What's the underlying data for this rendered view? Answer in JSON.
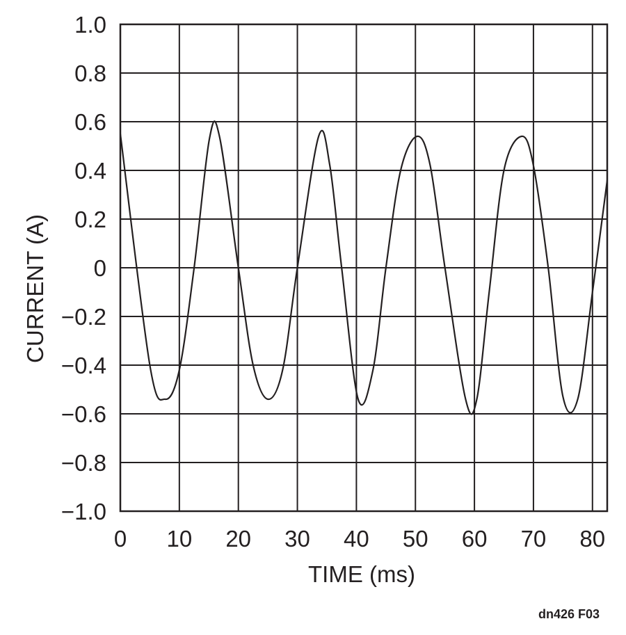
{
  "chart_data": {
    "type": "line",
    "title": "",
    "xlabel": "TIME (ms)",
    "ylabel": "CURRENT (A)",
    "xlim": [
      0,
      82.5
    ],
    "ylim": [
      -1.0,
      1.0
    ],
    "x_ticks": [
      0,
      10,
      20,
      30,
      40,
      50,
      60,
      70,
      80
    ],
    "x_tick_labels": [
      "0",
      "10",
      "20",
      "30",
      "40",
      "50",
      "60",
      "70",
      "80"
    ],
    "y_ticks": [
      1.0,
      0.8,
      0.6,
      0.4,
      0.2,
      0,
      -0.2,
      -0.4,
      -0.6,
      -0.8,
      -1.0
    ],
    "y_tick_labels": [
      "1.0",
      "0.8",
      "0.6",
      "0.4",
      "0.2",
      "0",
      "−0.2",
      "−0.4",
      "−0.6",
      "−0.8",
      "−1.0"
    ],
    "grid": true,
    "legend": "none",
    "series": [
      {
        "x": [
          0,
          5,
          7.6,
          10,
          12.5,
          15.1,
          16.8,
          20,
          22.5,
          25,
          27.5,
          30,
          33.6,
          35.5,
          37.5,
          40.3,
          42.8,
          45,
          47.5,
          50.3,
          52.5,
          55,
          58.5,
          60.4,
          62.5,
          65,
          68,
          70,
          72.5,
          75,
          77.5,
          80,
          82.5
        ],
        "y": [
          0.55,
          -0.4,
          -0.54,
          -0.42,
          0.0,
          0.53,
          0.54,
          0.0,
          -0.4,
          -0.54,
          -0.42,
          0.0,
          0.54,
          0.42,
          0.0,
          -0.54,
          -0.42,
          0.0,
          0.4,
          0.54,
          0.42,
          0.0,
          -0.54,
          -0.54,
          -0.1,
          0.4,
          0.54,
          0.42,
          0.0,
          -0.53,
          -0.54,
          -0.1,
          0.36
        ]
      }
    ],
    "line_color": "#231f20",
    "annotation": "dn426 F03"
  }
}
